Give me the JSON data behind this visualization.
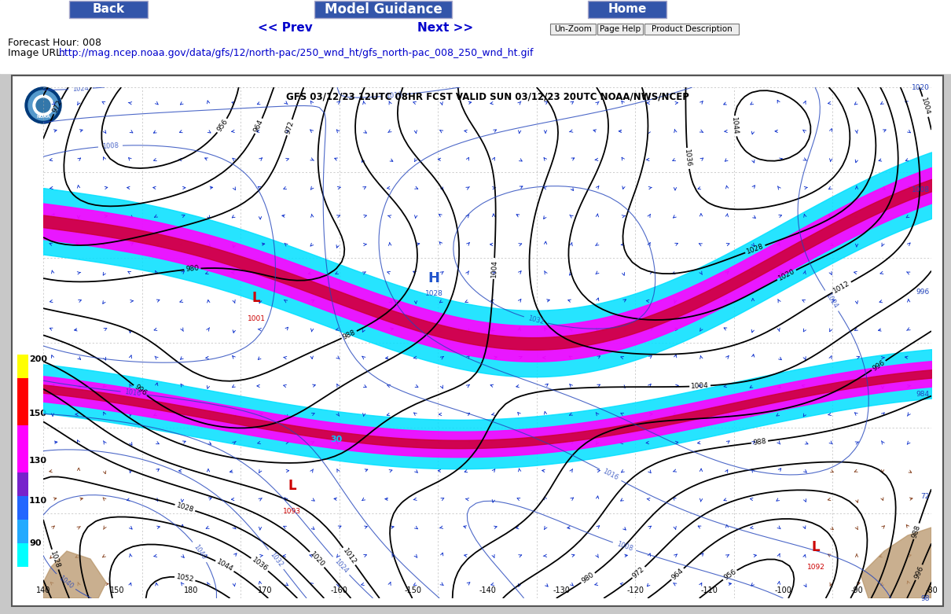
{
  "page_bg": "#c8c8c8",
  "title": "Model Guidance",
  "back_label": "Back",
  "home_label": "Home",
  "prev_label": "<< Prev",
  "next_label": "Next >>",
  "forecast_hour": "Forecast Hour: 008",
  "image_url_prefix": "Image URL: ",
  "image_url_link": "http://mag.ncep.noaa.gov/data/gfs/12/north-pac/250_wnd_ht/gfs_north-pac_008_250_wnd_ht.gif",
  "chart_title": "GFS 03/12/23 12UTC 08HR FCST VALID SUN 03/12/23 20UTC NOAA/NWS/NCEP",
  "button_color": "#3355aa",
  "button_text_color": "#ffffff",
  "nav_link_color": "#0000cc",
  "url_color": "#0000cc",
  "colorbar_segments": [
    {
      "color": "#ffff00",
      "label": null
    },
    {
      "color": "#ff0000",
      "label": "200"
    },
    {
      "color": "#ff0000",
      "label": null
    },
    {
      "color": "#ff00ff",
      "label": "150"
    },
    {
      "color": "#ff00ff",
      "label": null
    },
    {
      "color": "#9900cc",
      "label": "130"
    },
    {
      "color": "#6600cc",
      "label": null
    },
    {
      "color": "#4488ff",
      "label": "110"
    },
    {
      "color": "#2266ff",
      "label": null
    },
    {
      "color": "#00aaff",
      "label": "90"
    },
    {
      "color": "#00ffff",
      "label": null
    }
  ],
  "chart_frame_color": "#555555",
  "chart_bg": "#ffffff",
  "map_bg": "#ffffff",
  "lon_labels": [
    "140",
    "150",
    "180",
    "170",
    "-160",
    "-150",
    "-140",
    "-130",
    "-120",
    "-110",
    "-100",
    "-90",
    "-80"
  ],
  "noaa_blue": "#003a7a"
}
